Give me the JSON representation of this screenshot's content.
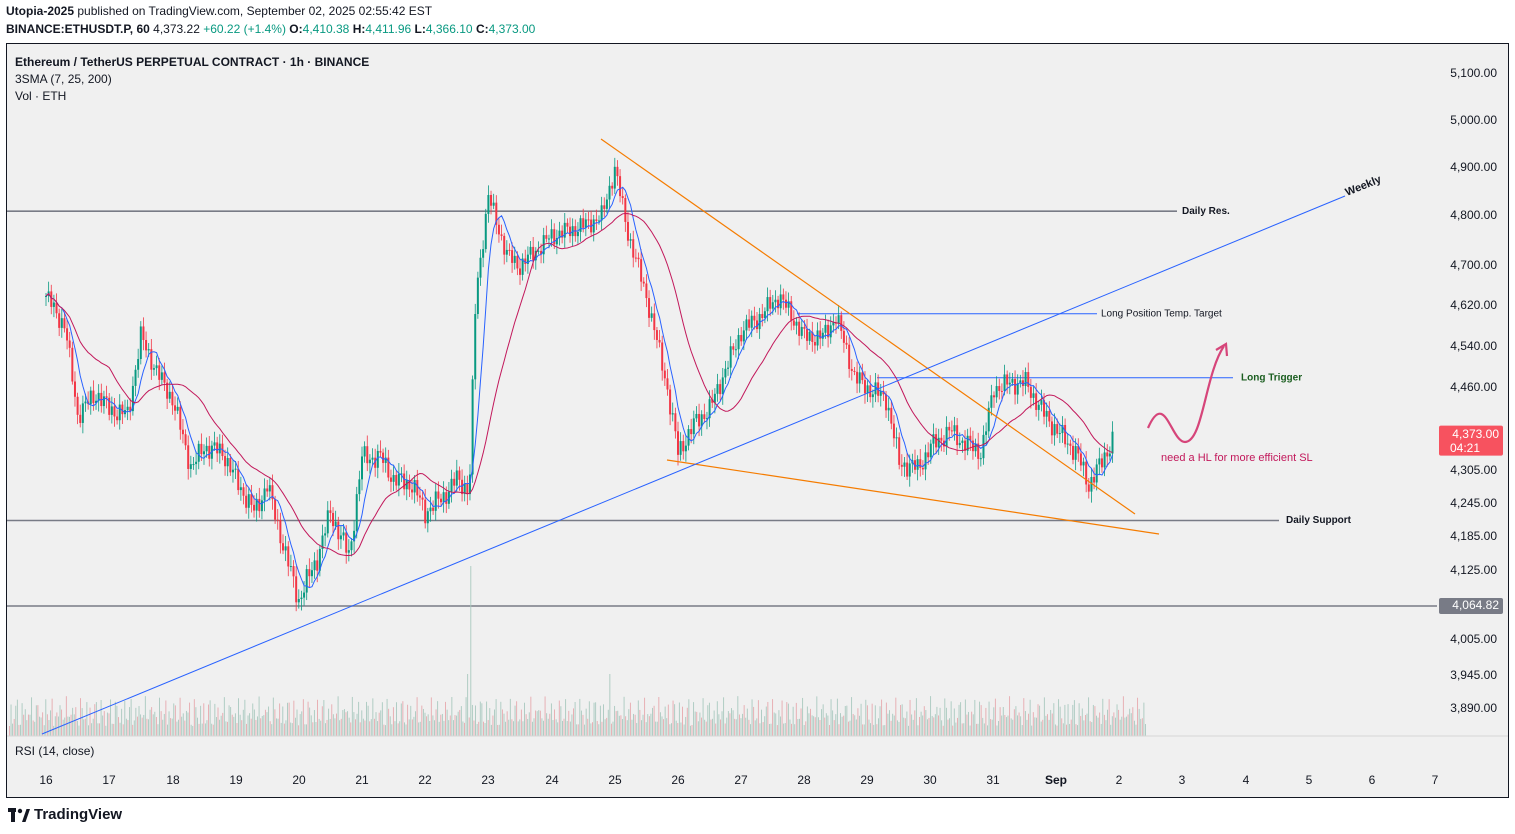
{
  "header": {
    "publisher_name": "Utopia-2025",
    "publisher_text": "published on TradingView.com, September 02, 2025 02:55:42 EST",
    "symbol_line": "BINANCE:ETHUSDT.P, 60",
    "price": "4,373.22",
    "change": "+60.22 (+1.4%)",
    "o_label": "O:",
    "o": "4,410.38",
    "h_label": "H:",
    "h": "4,411.96",
    "l_label": "L:",
    "l": "4,366.10",
    "c_label": "C:",
    "c": "4,373.00"
  },
  "legend": {
    "title": "Ethereum / TetherUS PERPETUAL CONTRACT · 1h · BINANCE",
    "indicator1": "3SMA (7, 25, 200)",
    "indicator2": "Vol · ETH"
  },
  "rsi_label": "RSI (14, close)",
  "footer": {
    "brand": "TradingView"
  },
  "colors": {
    "up": "#089981",
    "down": "#f23645",
    "sma7": "#2962ff",
    "sma25": "#c2185b",
    "trend_orange": "#f57c00",
    "trend_blue": "#2962ff",
    "level": "#787b86",
    "annotation": "#c2185b"
  },
  "chart_data": {
    "type": "candlestick",
    "x_ticks": [
      "16",
      "17",
      "18",
      "19",
      "20",
      "21",
      "22",
      "23",
      "24",
      "25",
      "26",
      "27",
      "28",
      "29",
      "30",
      "31",
      "Sep",
      "2",
      "3",
      "4",
      "5",
      "6",
      "7"
    ],
    "y_ticks": [
      "5,100.00",
      "5,000.00",
      "4,900.00",
      "4,800.00",
      "4,700.00",
      "4,620.00",
      "4,540.00",
      "4,460.00",
      "4,305.00",
      "4,245.00",
      "4,185.00",
      "4,125.00",
      "4,005.00",
      "3,945.00",
      "3,890.00"
    ],
    "last_price_label": "4,373.00",
    "countdown": "04:21",
    "hline_price_label": "4,064.82",
    "levels": [
      {
        "label": "Daily Res.",
        "price": 4810
      },
      {
        "label": "Daily Support",
        "price": 4215
      },
      {
        "label": "Long Position Temp. Target",
        "price": 4605
      },
      {
        "label": "Long Trigger",
        "price": 4480
      },
      {
        "label": "",
        "price": 4064.82
      }
    ],
    "trendline_labels": {
      "weekly": "Weekly"
    },
    "annotation": "need a HL for more efficient SL",
    "close_path": [
      [
        "16",
        4640
      ],
      [
        "16.3",
        4580
      ],
      [
        "16.5",
        4410
      ],
      [
        "16.8",
        4450
      ],
      [
        "17",
        4420
      ],
      [
        "17.3",
        4410
      ],
      [
        "17.5",
        4560
      ],
      [
        "17.8",
        4480
      ],
      [
        "18",
        4440
      ],
      [
        "18.3",
        4310
      ],
      [
        "18.5",
        4350
      ],
      [
        "18.8",
        4340
      ],
      [
        "19",
        4290
      ],
      [
        "19.3",
        4230
      ],
      [
        "19.5",
        4280
      ],
      [
        "19.8",
        4150
      ],
      [
        "20",
        4075
      ],
      [
        "20.3",
        4150
      ],
      [
        "20.5",
        4230
      ],
      [
        "20.8",
        4150
      ],
      [
        "21",
        4330
      ],
      [
        "21.3",
        4330
      ],
      [
        "21.5",
        4290
      ],
      [
        "21.8",
        4280
      ],
      [
        "22",
        4230
      ],
      [
        "22.3",
        4260
      ],
      [
        "22.5",
        4290
      ],
      [
        "22.7",
        4270
      ],
      [
        "22.8",
        4640
      ],
      [
        "23",
        4840
      ],
      [
        "23.3",
        4720
      ],
      [
        "23.5",
        4700
      ],
      [
        "24",
        4760
      ],
      [
        "24.5",
        4780
      ],
      [
        "24.8",
        4800
      ],
      [
        "25",
        4900
      ],
      [
        "25.2",
        4770
      ],
      [
        "25.5",
        4640
      ],
      [
        "25.8",
        4480
      ],
      [
        "26",
        4340
      ],
      [
        "26.3",
        4400
      ],
      [
        "26.5",
        4420
      ],
      [
        "26.8",
        4510
      ],
      [
        "27",
        4570
      ],
      [
        "27.3",
        4600
      ],
      [
        "27.6",
        4640
      ],
      [
        "28",
        4560
      ],
      [
        "28.3",
        4560
      ],
      [
        "28.5",
        4600
      ],
      [
        "28.8",
        4480
      ],
      [
        "29",
        4460
      ],
      [
        "29.3",
        4440
      ],
      [
        "29.5",
        4320
      ],
      [
        "29.8",
        4310
      ],
      [
        "30",
        4350
      ],
      [
        "30.3",
        4380
      ],
      [
        "30.5",
        4360
      ],
      [
        "30.8",
        4340
      ],
      [
        "31",
        4460
      ],
      [
        "31.3",
        4470
      ],
      [
        "31.5",
        4470
      ],
      [
        "31.8",
        4410
      ],
      [
        "32",
        4380
      ],
      [
        "32.3",
        4340
      ],
      [
        "32.5",
        4280
      ],
      [
        "32.7",
        4320
      ],
      [
        "32.9",
        4370
      ]
    ]
  }
}
